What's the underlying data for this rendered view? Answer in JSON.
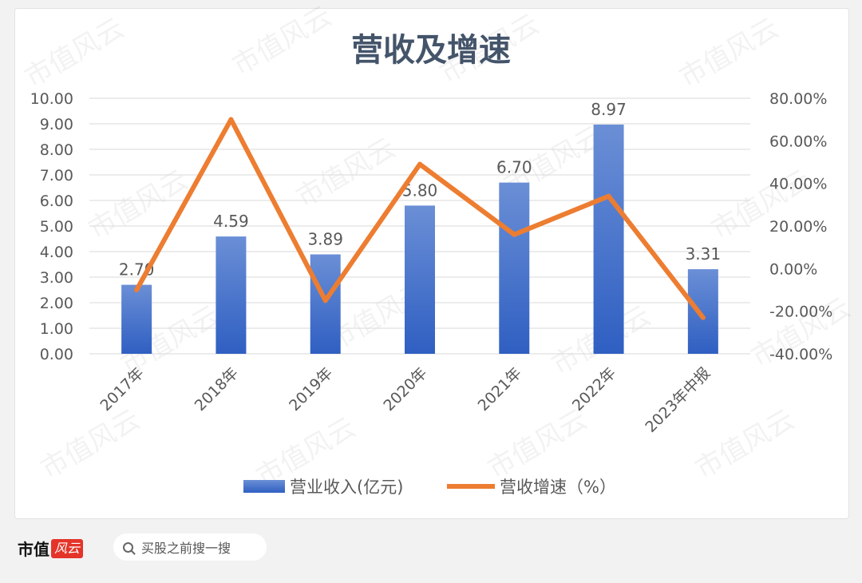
{
  "chart_data": {
    "type": "bar+line",
    "title": "营收及增速",
    "categories": [
      "2017年",
      "2018年",
      "2019年",
      "2020年",
      "2021年",
      "2022年",
      "2023年中报"
    ],
    "series": [
      {
        "name": "营业收入(亿元)",
        "type": "bar",
        "axis": "left",
        "values": [
          2.7,
          4.59,
          3.89,
          5.8,
          6.7,
          8.97,
          3.31
        ],
        "labels": [
          "2.70",
          "4.59",
          "3.89",
          "5.80",
          "6.70",
          "8.97",
          "3.31"
        ]
      },
      {
        "name": "营收增速（%）",
        "type": "line",
        "axis": "right",
        "values": [
          -10,
          70,
          -15,
          49,
          16,
          34,
          -23
        ]
      }
    ],
    "y_left": {
      "min": 0,
      "max": 10,
      "step": 1,
      "ticks": [
        "0.00",
        "1.00",
        "2.00",
        "3.00",
        "4.00",
        "5.00",
        "6.00",
        "7.00",
        "8.00",
        "9.00",
        "10.00"
      ]
    },
    "y_right": {
      "min": -40,
      "max": 80,
      "step": 20,
      "ticks": [
        "-40.00%",
        "-20.00%",
        "0.00%",
        "20.00%",
        "40.00%",
        "60.00%",
        "80.00%"
      ]
    },
    "grid": true,
    "legend_position": "bottom",
    "colors": {
      "bar_top": "#6b8fd6",
      "bar_bottom": "#2f5fc2",
      "line": "#ed7d31",
      "title": "#44546a",
      "grid": "#d9d9d9",
      "text": "#595959"
    }
  },
  "watermark": "市值风云",
  "footer": {
    "brand": "市值",
    "logo_text": "风云",
    "search_placeholder": "买股之前搜一搜",
    "icons": {
      "search": "search-icon"
    }
  }
}
